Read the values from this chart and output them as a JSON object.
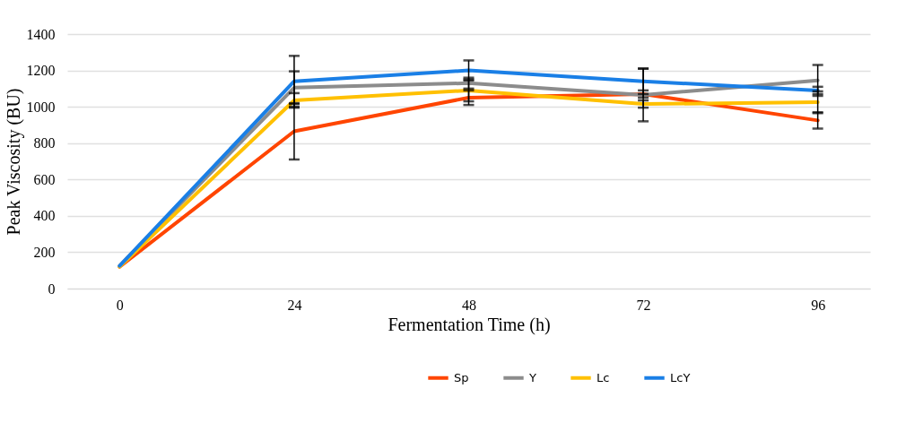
{
  "chart_data": {
    "type": "line",
    "xlabel": "Fermentation Time (h)",
    "ylabel": "Peak Viscosity (BU)",
    "categories": [
      "0",
      "24",
      "48",
      "72",
      "96"
    ],
    "series": [
      {
        "name": "Sp",
        "color": "#ff4500",
        "values": [
          120,
          865,
          1050,
          1070,
          925
        ],
        "errors": [
          null,
          155,
          40,
          20,
          45
        ]
      },
      {
        "name": "Y",
        "color": "#8c8c8c",
        "values": [
          125,
          1105,
          1130,
          1065,
          1145
        ],
        "errors": [
          null,
          90,
          30,
          145,
          85
        ]
      },
      {
        "name": "Lc",
        "color": "#ffc000",
        "values": [
          120,
          1035,
          1090,
          1015,
          1025
        ],
        "errors": [
          null,
          40,
          60,
          20,
          60
        ]
      },
      {
        "name": "LcY",
        "color": "#1a7fe6",
        "values": [
          125,
          1140,
          1200,
          1140,
          1090
        ],
        "errors": [
          null,
          140,
          55,
          70,
          20
        ]
      }
    ],
    "ylim": [
      0,
      1400
    ],
    "yticks": [
      0,
      200,
      400,
      600,
      800,
      1000,
      1200,
      1400
    ],
    "grid": "y",
    "legend": "bottom",
    "marker": "none"
  }
}
